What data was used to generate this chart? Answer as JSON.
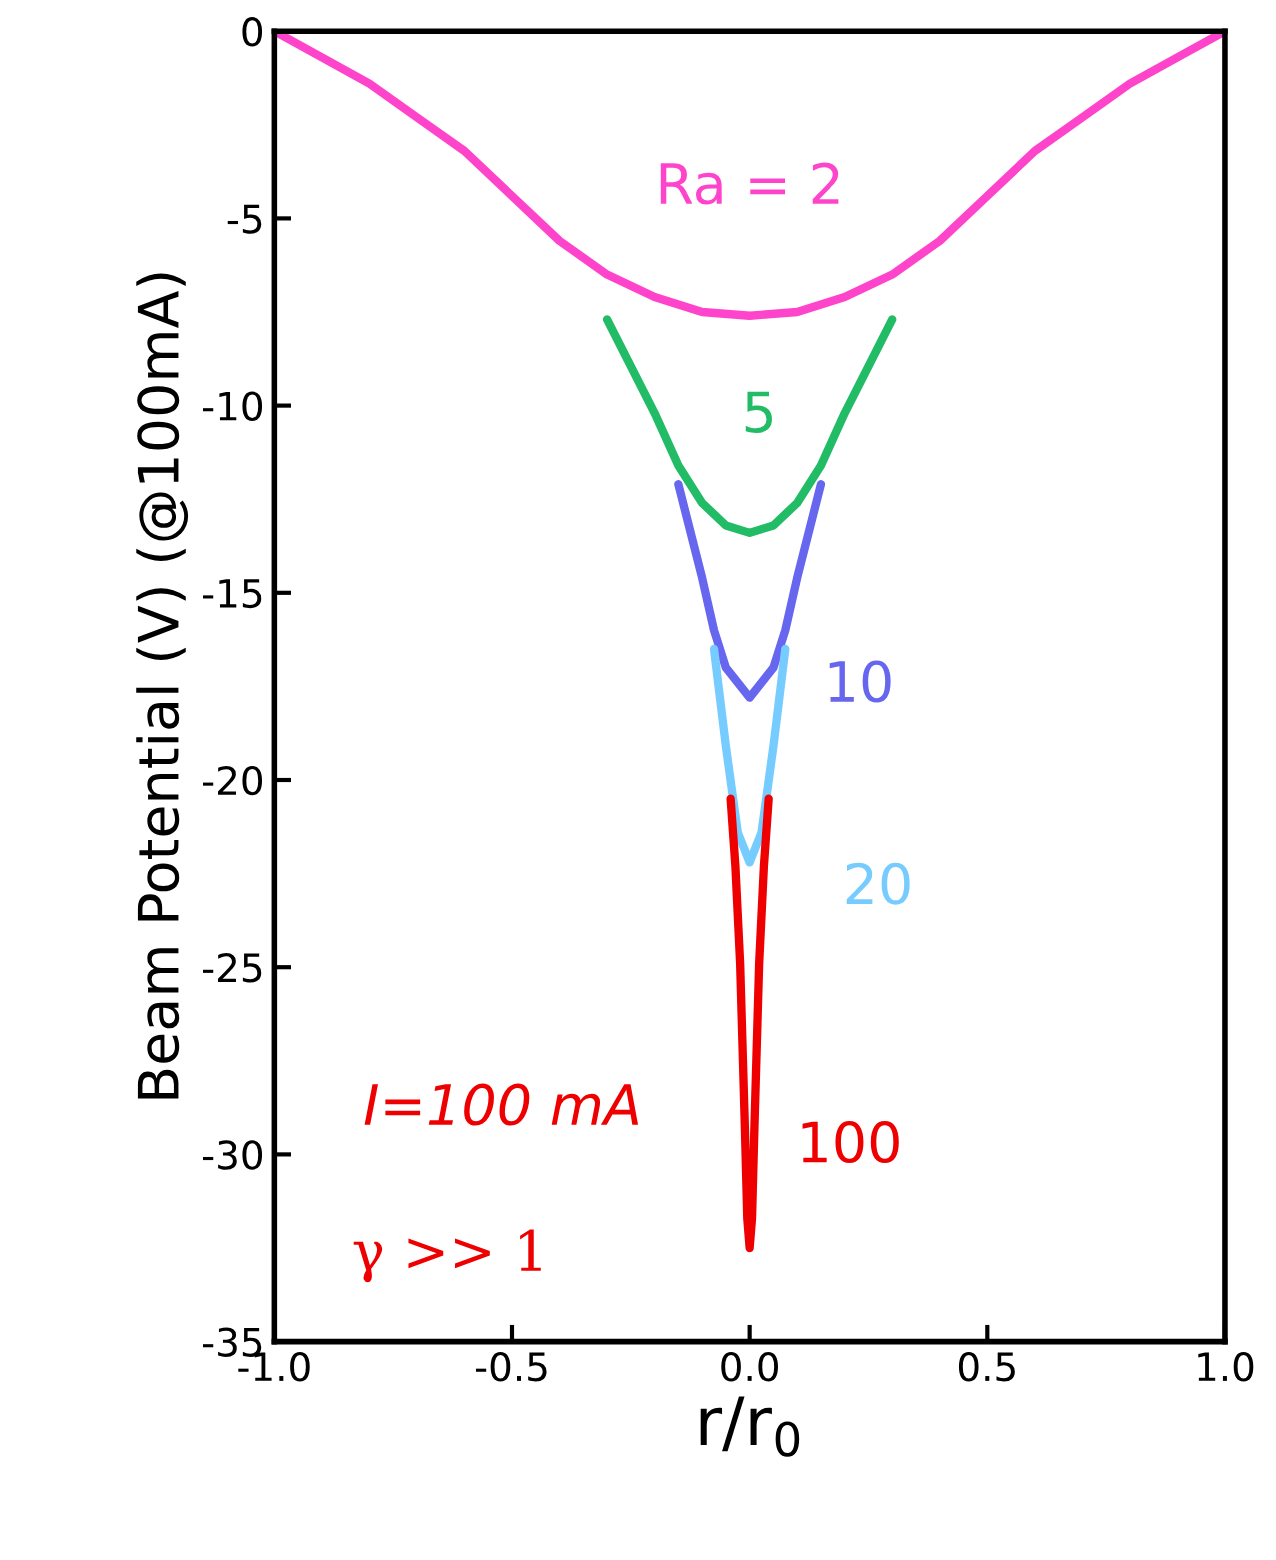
{
  "chart_data": {
    "type": "line",
    "xlabel": "r/r$_{0}$",
    "ylabel": "Beam Potential (V) (@100mA)",
    "xlim": [
      -1,
      1
    ],
    "ylim": [
      -35,
      0
    ],
    "xticks": [
      {
        "value": -1,
        "label": "-1.0"
      },
      {
        "value": -0.5,
        "label": "-0.5"
      },
      {
        "value": 0,
        "label": "0.0"
      },
      {
        "value": 0.5,
        "label": "0.5"
      },
      {
        "value": 1,
        "label": "1.0"
      }
    ],
    "yticks": [
      -35,
      -30,
      -25,
      -20,
      -15,
      -10,
      -5,
      0
    ],
    "grid": false,
    "legend": false,
    "marker": "none",
    "line_style": "solid",
    "annotations": [
      "I=100 mA",
      "γ >> 1"
    ],
    "series": [
      {
        "name": "Ra = 2",
        "color": "#ff44cc",
        "x": [
          -1,
          -0.9,
          -0.8,
          -0.7,
          -0.6,
          -0.5,
          -0.4,
          -0.3,
          -0.2,
          -0.1,
          0,
          0.1,
          0.2,
          0.3,
          0.4,
          0.5,
          0.6,
          0.7,
          0.8,
          0.9,
          1
        ],
        "values": [
          0,
          -0.7,
          -1.4,
          -2.3,
          -3.2,
          -4.4,
          -5.6,
          -6.5,
          -7.1,
          -7.5,
          -7.6,
          -7.5,
          -7.1,
          -6.5,
          -5.6,
          -4.4,
          -3.2,
          -2.3,
          -1.4,
          -0.7,
          0
        ]
      },
      {
        "name": "5",
        "color": "#22bb66",
        "x": [
          -0.3,
          -0.2,
          -0.15,
          -0.1,
          -0.05,
          0,
          0.05,
          0.1,
          0.15,
          0.2,
          0.3
        ],
        "values": [
          -7.7,
          -10.2,
          -11.6,
          -12.6,
          -13.2,
          -13.4,
          -13.2,
          -12.6,
          -11.6,
          -10.2,
          -7.7
        ]
      },
      {
        "name": "10",
        "color": "#6666ee",
        "x": [
          -0.15,
          -0.1,
          -0.075,
          -0.05,
          0,
          0.05,
          0.075,
          0.1,
          0.15
        ],
        "values": [
          -12.1,
          -14.6,
          -16.0,
          -17.0,
          -17.8,
          -17.0,
          -16.0,
          -14.6,
          -12.1
        ]
      },
      {
        "name": "20",
        "color": "#77ccff",
        "x": [
          -0.075,
          -0.05,
          -0.025,
          0,
          0.025,
          0.05,
          0.075
        ],
        "values": [
          -16.5,
          -19.1,
          -21.4,
          -22.2,
          -21.4,
          -19.1,
          -16.5
        ]
      },
      {
        "name": "100",
        "color": "#ee0000",
        "x": [
          -0.04,
          -0.03,
          -0.02,
          -0.01,
          -0.005,
          0,
          0.005,
          0.01,
          0.02,
          0.03,
          0.04
        ],
        "values": [
          -20.5,
          -22.3,
          -24.9,
          -29.3,
          -31.7,
          -32.5,
          -31.7,
          -29.3,
          -24.9,
          -22.3,
          -20.5
        ]
      }
    ]
  }
}
